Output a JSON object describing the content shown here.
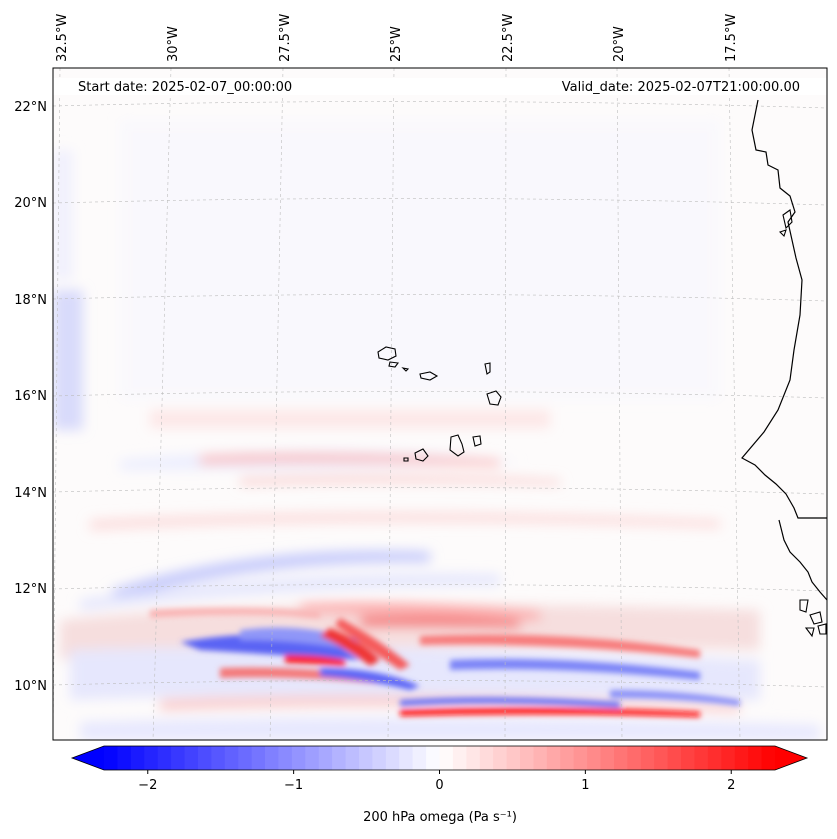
{
  "header": {
    "start_date": "Start date: 2025-02-07_00:00:00",
    "valid_date": "Valid_date: 2025-02-07T21:00:00.00"
  },
  "axes": {
    "lon_labels": [
      "32.5°W",
      "30°W",
      "27.5°W",
      "25°W",
      "22.5°W",
      "20°W",
      "17.5°W"
    ],
    "lat_labels": [
      "22°N",
      "20°N",
      "18°N",
      "16°N",
      "14°N",
      "12°N",
      "10°N"
    ]
  },
  "colorbar": {
    "label": "200 hPa omega (Pa s⁻¹)",
    "ticks": [
      "−2",
      "−1",
      "0",
      "1",
      "2"
    ],
    "tick_values": [
      -2,
      -1,
      0,
      1,
      2
    ],
    "vmin": -2.5,
    "vmax": 2.5,
    "neg_color": "#0000ff",
    "zero_color": "#ffffff",
    "pos_color": "#ff0000"
  },
  "chart_data": {
    "type": "heatmap",
    "variable": "200 hPa omega",
    "units": "Pa s-1",
    "lon_ticks": [
      -32.5,
      -30,
      -27.5,
      -25,
      -22.5,
      -20,
      -17.5
    ],
    "lat_ticks": [
      22,
      20,
      18,
      16,
      14,
      12,
      10
    ],
    "features": [
      {
        "name": "strong ascent band",
        "lat": 9.5,
        "lon_range": [
          -26,
          -18
        ],
        "value": 2.3
      },
      {
        "name": "upward band",
        "lat": 11.4,
        "lon_range": [
          -25,
          -21
        ],
        "value": 1.5
      },
      {
        "name": "descent core",
        "lat": 10.9,
        "lon_range": [
          -28.5,
          -25.5
        ],
        "value": -1.8
      },
      {
        "name": "ascent streak",
        "lat": 10.5,
        "lon_range": [
          -27.5,
          -26
        ],
        "value": 2.0
      },
      {
        "name": "weak descent band",
        "lat": 12.3,
        "lon_range": [
          -31,
          -24
        ],
        "value": -0.6
      },
      {
        "name": "weak ascent band",
        "lat": 14.7,
        "lon_range": [
          -28,
          -23
        ],
        "value": 0.5
      }
    ]
  }
}
